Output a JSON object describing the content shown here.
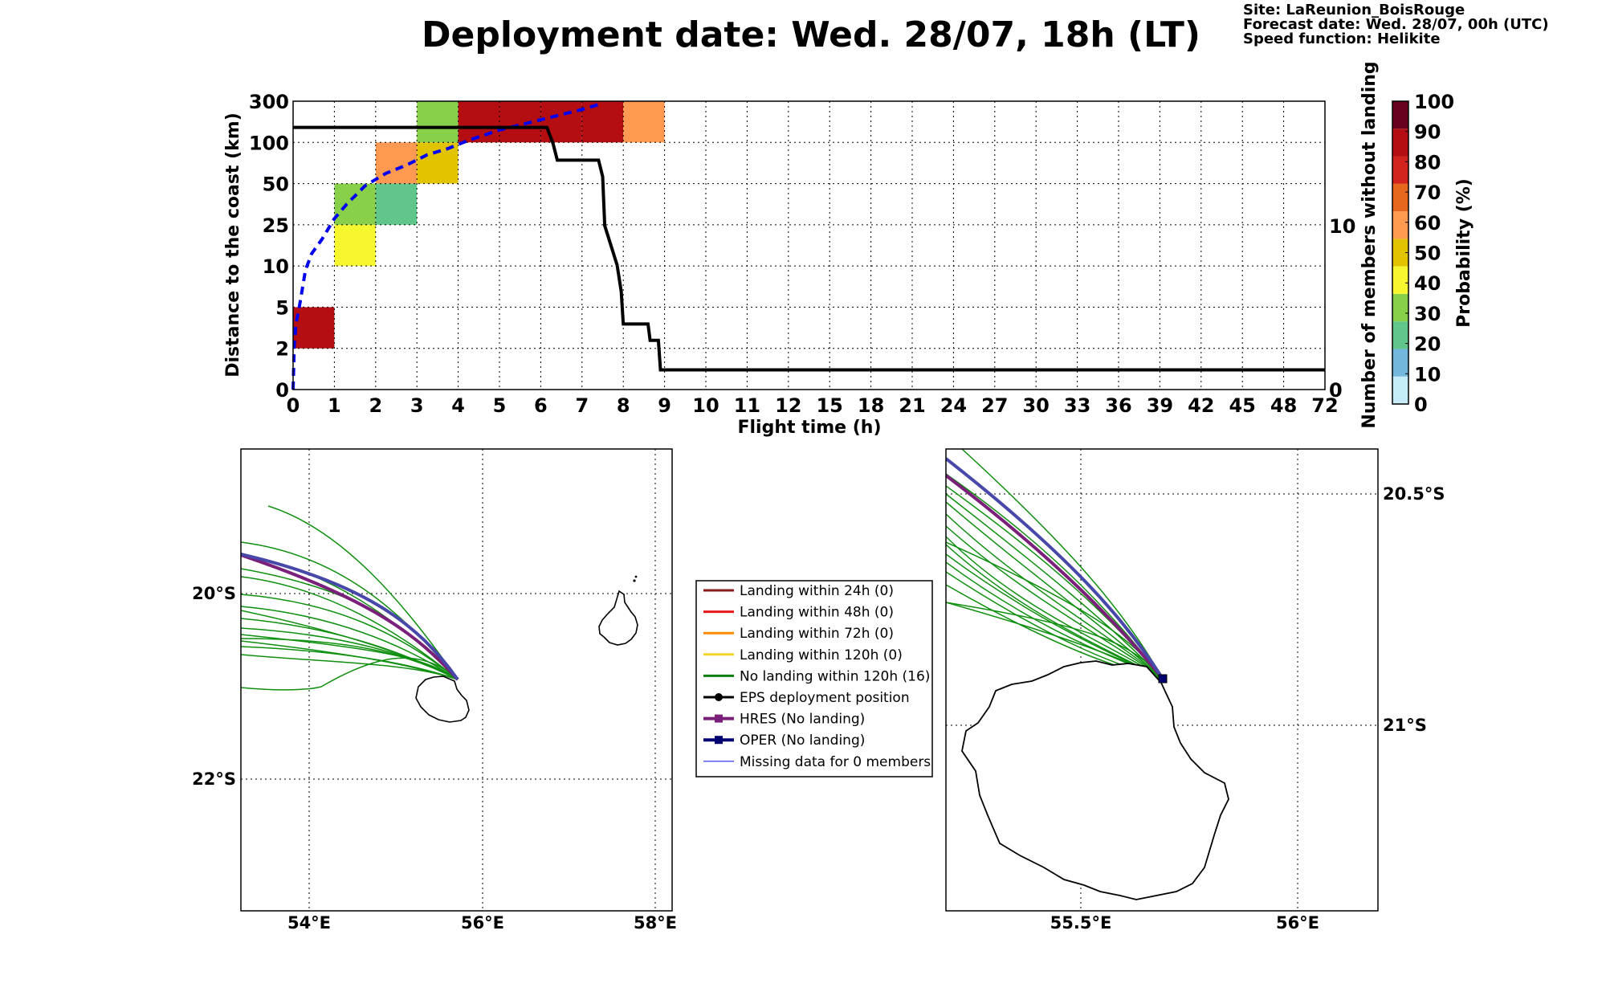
{
  "title": "Deployment date: Wed. 28/07, 18h (LT)",
  "info": {
    "site": "Site: LaReunion_BoisRouge",
    "forecast": "Forecast date: Wed. 28/07, 00h (UTC)",
    "speed": "Speed function: Helikite"
  },
  "chart_data": [
    {
      "type": "heatmap",
      "xlabel": "Flight time (h)",
      "ylabel": "Distance to the coast (km)",
      "y2label": "Number of members without landing",
      "x_ticks": [
        "0",
        "1",
        "2",
        "3",
        "4",
        "5",
        "6",
        "7",
        "8",
        "9",
        "10",
        "11",
        "12",
        "15",
        "18",
        "21",
        "24",
        "27",
        "30",
        "33",
        "36",
        "39",
        "42",
        "45",
        "48",
        "72"
      ],
      "y_ticks": [
        "0",
        "2",
        "5",
        "10",
        "25",
        "50",
        "100",
        "300"
      ],
      "y2_ticks": [
        {
          "value": 0,
          "label": "0"
        },
        {
          "value": 10,
          "label": "10"
        }
      ],
      "y2lim": [
        0,
        17.6
      ],
      "cells": [
        {
          "x_bin": 0,
          "y_bin": 1,
          "probability": 95
        },
        {
          "x_bin": 1,
          "y_bin": 3,
          "probability": 45
        },
        {
          "x_bin": 1,
          "y_bin": 4,
          "probability": 38
        },
        {
          "x_bin": 2,
          "y_bin": 4,
          "probability": 22
        },
        {
          "x_bin": 2,
          "y_bin": 5,
          "probability": 68
        },
        {
          "x_bin": 3,
          "y_bin": 5,
          "probability": 58
        },
        {
          "x_bin": 3,
          "y_bin": 6,
          "probability": 32
        },
        {
          "x_bin": 4,
          "y_bin": 6,
          "probability": 95
        },
        {
          "x_bin": 5,
          "y_bin": 6,
          "probability": 95
        },
        {
          "x_bin": 6,
          "y_bin": 6,
          "probability": 95
        },
        {
          "x_bin": 7,
          "y_bin": 6,
          "probability": 95
        },
        {
          "x_bin": 8,
          "y_bin": 6,
          "probability": 68
        }
      ],
      "members_without_landing": [
        [
          0,
          16
        ],
        [
          6.15,
          16
        ],
        [
          6.3,
          15
        ],
        [
          6.4,
          14
        ],
        [
          7.4,
          14
        ],
        [
          7.5,
          13
        ],
        [
          7.55,
          10
        ],
        [
          7.7,
          8.8
        ],
        [
          7.85,
          7.6
        ],
        [
          7.95,
          6
        ],
        [
          8.0,
          4
        ],
        [
          8.6,
          4
        ],
        [
          8.65,
          3
        ],
        [
          8.85,
          3
        ],
        [
          8.9,
          1.2
        ],
        [
          25,
          1.2
        ]
      ],
      "mean_distance_curve": [
        [
          0,
          0
        ],
        [
          0.03,
          1.1
        ],
        [
          0.07,
          1.6
        ],
        [
          0.15,
          2.0
        ],
        [
          0.3,
          2.9
        ],
        [
          0.45,
          3.3
        ],
        [
          0.7,
          3.65
        ],
        [
          1.0,
          4.15
        ],
        [
          1.3,
          4.5
        ],
        [
          1.75,
          4.95
        ],
        [
          2.25,
          5.25
        ],
        [
          2.75,
          5.45
        ],
        [
          3.25,
          5.7
        ],
        [
          3.75,
          5.85
        ],
        [
          4.25,
          6.05
        ],
        [
          5.0,
          6.3
        ],
        [
          6.0,
          6.55
        ],
        [
          7.0,
          6.8
        ],
        [
          7.5,
          6.95
        ]
      ]
    }
  ],
  "colorbar": {
    "label": "Probability (%)",
    "ticks": [
      "0",
      "10",
      "20",
      "30",
      "40",
      "50",
      "60",
      "70",
      "80",
      "90",
      "100"
    ],
    "colors": [
      "#c6ecfa",
      "#74b7dd",
      "#60c68a",
      "#88d04a",
      "#f7f730",
      "#e2c300",
      "#fd9951",
      "#e5681e",
      "#d2231c",
      "#b50e12",
      "#67001f"
    ]
  },
  "maps": {
    "left": {
      "lon_ticks": [
        "54°E",
        "56°E",
        "58°E"
      ],
      "lat_ticks": [
        "20°S",
        "22°S"
      ]
    },
    "right": {
      "lon_ticks": [
        "55.5°E",
        "56°E"
      ],
      "lat_ticks": [
        "20.5°S",
        "21°S"
      ]
    }
  },
  "legend": {
    "items": [
      {
        "label": "Landing within 24h (0)",
        "color": "#8b1a1a",
        "marker": "none",
        "width": 3
      },
      {
        "label": "Landing within 48h (0)",
        "color": "#e8191c",
        "marker": "none",
        "width": 3
      },
      {
        "label": "Landing within 72h (0)",
        "color": "#ff8a00",
        "marker": "none",
        "width": 3
      },
      {
        "label": "Landing within 120h (0)",
        "color": "#f2d526",
        "marker": "none",
        "width": 3
      },
      {
        "label": "No landing within 120h (16)",
        "color": "#0a7d0a",
        "marker": "none",
        "width": 3
      },
      {
        "label": "EPS deployment position",
        "color": "#000000",
        "marker": "circle",
        "width": 3
      },
      {
        "label": "HRES (No landing)",
        "color": "#7a1f7a",
        "marker": "square",
        "width": 4
      },
      {
        "label": "OPER (No landing)",
        "color": "#000070",
        "marker": "square",
        "width": 4
      },
      {
        "label": "Missing data for 0 members",
        "color": "#5a5aff",
        "marker": "none",
        "width": 1.5
      }
    ]
  }
}
